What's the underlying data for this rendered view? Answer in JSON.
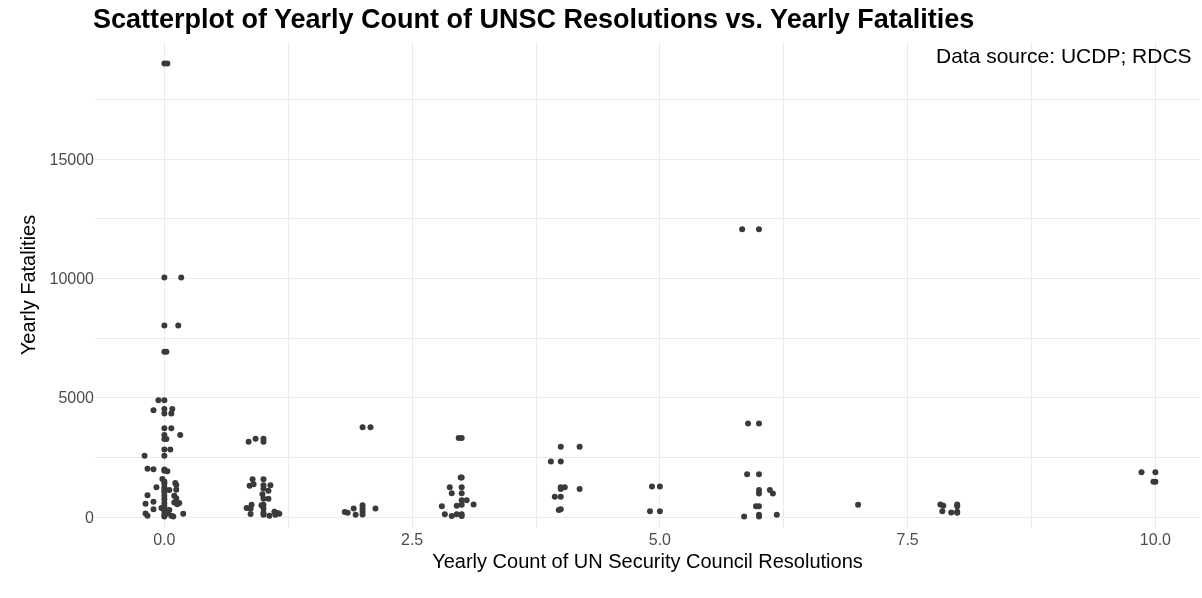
{
  "chart_data": {
    "type": "scatter",
    "title": "Scatterplot of Yearly Count of UNSC Resolutions vs. Yearly Fatalities",
    "xlabel": "Yearly Count of UN Security Council Resolutions",
    "ylabel": "Yearly Fatalities",
    "annotations": [
      "Data source: UCDP; RDCS"
    ],
    "x": [
      0,
      0.03,
      0,
      0.17,
      0,
      0.14,
      0,
      0.02,
      -0.06,
      0,
      -0.11,
      0,
      0.08,
      0,
      0.07,
      0,
      0.07,
      0.16,
      0,
      0,
      0.02,
      0,
      0.06,
      -0.2,
      0,
      -0.17,
      -0.11,
      0,
      0,
      0.03,
      -0.02,
      0,
      0,
      0.11,
      0.12,
      -0.08,
      0,
      0,
      0.05,
      0.12,
      0,
      -0.17,
      0.1,
      0,
      0.12,
      0,
      -0.11,
      0.1,
      -0.19,
      0.15,
      0.13,
      0,
      0,
      -0.03,
      0,
      -0.11,
      0.05,
      0,
      -0.19,
      0.19,
      0.03,
      -0.17,
      0.07,
      0.09,
      0,
      0,
      0.02,
      0.85,
      0.92,
      1,
      1,
      0.89,
      1,
      0.86,
      0.9,
      1,
      1.07,
      1,
      1.05,
      0.99,
      1,
      1.05,
      0.98,
      1,
      0.88,
      0.83,
      0.87,
      1,
      1,
      0.87,
      1,
      1.06,
      1.11,
      1.14,
      1.16,
      1.12,
      2,
      2.08,
      1.82,
      1.85,
      1.91,
      2,
      2,
      2,
      2,
      1.93,
      2.13,
      2.97,
      3,
      2.99,
      3,
      2.88,
      3,
      2.9,
      3,
      3,
      3.05,
      3,
      2.95,
      3.12,
      2.8,
      2.83,
      2.9,
      2.95,
      3,
      3,
      4,
      4.19,
      3.9,
      4,
      4,
      4.04,
      4,
      4.19,
      3.94,
      4,
      3.98,
      4,
      4.92,
      5,
      4.9,
      5,
      5.83,
      6,
      5.89,
      6,
      5.88,
      6,
      6,
      6.11,
      6,
      6.14,
      5.97,
      6,
      5.85,
      6,
      6,
      6.18,
      7,
      7.83,
      7.86,
      8,
      8,
      7.85,
      7.94,
      8,
      8,
      9.86,
      10,
      10,
      9.98
    ],
    "values": [
      19000,
      19000,
      10040,
      10040,
      8030,
      8030,
      6930,
      6930,
      4900,
      4900,
      4480,
      4530,
      4530,
      4340,
      4340,
      3730,
      3730,
      3440,
      3440,
      3280,
      3280,
      2840,
      2840,
      2580,
      2580,
      2030,
      2010,
      2000,
      1950,
      1930,
      1600,
      1500,
      1400,
      1430,
      1350,
      1260,
      1250,
      1150,
      1140,
      1150,
      1050,
      920,
      900,
      900,
      800,
      750,
      650,
      620,
      570,
      600,
      540,
      600,
      480,
      390,
      390,
      340,
      300,
      250,
      160,
      150,
      200,
      60,
      60,
      30,
      100,
      30,
      150,
      3160,
      3290,
      3290,
      3160,
      1590,
      1590,
      1320,
      1380,
      1340,
      1340,
      1200,
      1110,
      960,
      780,
      780,
      500,
      520,
      520,
      390,
      360,
      370,
      190,
      140,
      110,
      60,
      230,
      180,
      150,
      100,
      3770,
      3770,
      220,
      190,
      370,
      500,
      370,
      240,
      120,
      110,
      370,
      3320,
      3320,
      1660,
      1660,
      1260,
      1260,
      1000,
      1000,
      710,
      710,
      520,
      480,
      530,
      460,
      130,
      50,
      130,
      130,
      50,
      2950,
      2950,
      2330,
      2330,
      1260,
      1260,
      1180,
      1180,
      860,
      860,
      300,
      340,
      1290,
      1290,
      250,
      250,
      12060,
      12060,
      3930,
      3930,
      1800,
      1800,
      1140,
      1140,
      990,
      990,
      460,
      460,
      30,
      30,
      100,
      110,
      520,
      530,
      480,
      530,
      460,
      250,
      200,
      230,
      190,
      1880,
      1880,
      1490,
      1490
    ],
    "color": "#3a3a3a",
    "marker": "circle",
    "xlim": [
      -0.7,
      10.45
    ],
    "xticks": [
      {
        "value": 0,
        "label": "0.0"
      },
      {
        "value": 1.25,
        "label": null
      },
      {
        "value": 2.5,
        "label": "2.5"
      },
      {
        "value": 3.75,
        "label": null
      },
      {
        "value": 5,
        "label": "5.0"
      },
      {
        "value": 6.25,
        "label": null
      },
      {
        "value": 7.5,
        "label": "7.5"
      },
      {
        "value": 8.75,
        "label": null
      },
      {
        "value": 10,
        "label": "10.0"
      }
    ],
    "ylim": [
      -450,
      19900
    ],
    "yticks": [
      0,
      {
        "value": 2500,
        "label": null
      },
      5000,
      {
        "value": 7500,
        "label": null
      },
      10000,
      {
        "value": 12500,
        "label": null
      },
      15000,
      {
        "value": 17500,
        "label": null
      }
    ],
    "grid": true
  }
}
